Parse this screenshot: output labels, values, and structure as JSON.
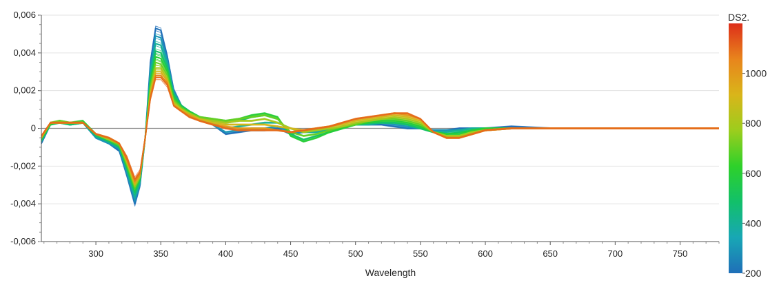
{
  "chart_data": {
    "type": "line",
    "xlabel": "Wavelength",
    "ylabel": "",
    "xlim": [
      258,
      780
    ],
    "ylim": [
      -0.006,
      0.006
    ],
    "x_ticks": [
      300,
      350,
      400,
      450,
      500,
      550,
      600,
      650,
      700,
      750
    ],
    "x_tick_labels": [
      "300",
      "350",
      "400",
      "450",
      "500",
      "550",
      "600",
      "650",
      "700",
      "750"
    ],
    "y_ticks": [
      -0.006,
      -0.004,
      -0.002,
      0,
      0.002,
      0.004,
      0.006
    ],
    "y_tick_labels": [
      "-0,006",
      "-0,004",
      "-0,002",
      "0",
      "0,002",
      "0,004",
      "0,006"
    ],
    "grid": true,
    "colorbar": {
      "title": "DS2.",
      "min": 200,
      "max": 1200,
      "ticks": [
        200,
        400,
        600,
        800,
        1000
      ],
      "tick_labels": [
        "200",
        "400",
        "600",
        "800",
        "1000"
      ],
      "colors": [
        "#1f6fb8",
        "#18a7b5",
        "#12c06a",
        "#2ed12a",
        "#9ccd1d",
        "#d9b51a",
        "#e8851c",
        "#dd2e1a"
      ]
    },
    "series_param": [
      200,
      300,
      400,
      500,
      600,
      700,
      800,
      900,
      1000,
      1100
    ],
    "series": [
      {
        "param": 200,
        "x": [
          258,
          265,
          272,
          280,
          290,
          300,
          310,
          318,
          324,
          330,
          334,
          338,
          342,
          346,
          350,
          355,
          360,
          366,
          372,
          380,
          390,
          400,
          410,
          420,
          430,
          440,
          450,
          460,
          470,
          480,
          490,
          500,
          510,
          520,
          530,
          540,
          550,
          560,
          570,
          580,
          590,
          600,
          620,
          650,
          700,
          750,
          780
        ],
        "y": [
          -0.0008,
          0.0002,
          0.0004,
          0.0002,
          0.0003,
          -0.0005,
          -0.0008,
          -0.0012,
          -0.0025,
          -0.004,
          -0.003,
          -0.0005,
          0.0035,
          0.0053,
          0.0052,
          0.0038,
          0.002,
          0.0012,
          0.0009,
          0.0005,
          0.0002,
          -0.0003,
          -0.0002,
          -0.0001,
          -0.0001,
          0.0,
          -0.0003,
          -0.0002,
          -0.0001,
          -0.0002,
          0.0001,
          0.0002,
          0.0002,
          0.0002,
          0.0001,
          0.0,
          0.0,
          -0.0001,
          -0.0001,
          0.0,
          0.0,
          0.0,
          0.0001,
          0.0,
          0.0,
          0.0,
          0.0
        ]
      },
      {
        "param": 300,
        "x": [
          258,
          265,
          272,
          280,
          290,
          300,
          310,
          318,
          324,
          330,
          334,
          338,
          342,
          346,
          350,
          355,
          360,
          366,
          372,
          380,
          390,
          400,
          410,
          420,
          430,
          440,
          450,
          460,
          470,
          480,
          490,
          500,
          510,
          520,
          530,
          540,
          550,
          560,
          570,
          580,
          590,
          600,
          620,
          650,
          700,
          750,
          780
        ],
        "y": [
          -0.0007,
          0.0002,
          0.0004,
          0.0002,
          0.0003,
          -0.0005,
          -0.0008,
          -0.0011,
          -0.0024,
          -0.0038,
          -0.0029,
          -0.0005,
          0.0032,
          0.0049,
          0.0048,
          0.0036,
          0.0019,
          0.0012,
          0.0009,
          0.0005,
          0.0002,
          -0.0002,
          -0.0001,
          0.0,
          0.0,
          0.0001,
          -0.0002,
          -0.0002,
          -0.0001,
          -0.0001,
          0.0001,
          0.0002,
          0.0002,
          0.0003,
          0.0002,
          0.0001,
          0.0,
          -0.0001,
          -0.0001,
          -0.0001,
          0.0,
          0.0,
          0.0,
          0.0,
          0.0,
          0.0,
          0.0
        ]
      },
      {
        "param": 400,
        "x": [
          258,
          265,
          272,
          280,
          290,
          300,
          310,
          318,
          324,
          330,
          334,
          338,
          342,
          346,
          350,
          355,
          360,
          366,
          372,
          380,
          390,
          400,
          410,
          420,
          430,
          440,
          450,
          460,
          470,
          480,
          490,
          500,
          510,
          520,
          530,
          540,
          550,
          560,
          570,
          580,
          590,
          600,
          620,
          650,
          700,
          750,
          780
        ],
        "y": [
          -0.0007,
          0.0002,
          0.0003,
          0.0002,
          0.0003,
          -0.0004,
          -0.0007,
          -0.001,
          -0.0022,
          -0.0036,
          -0.0028,
          -0.0005,
          0.0029,
          0.0045,
          0.0044,
          0.0034,
          0.0018,
          0.0012,
          0.0009,
          0.0006,
          0.0003,
          0.0,
          0.0001,
          0.0002,
          0.0003,
          0.0003,
          0.0,
          -0.0002,
          -0.0002,
          -0.0001,
          0.0001,
          0.0002,
          0.0002,
          0.0003,
          0.0003,
          0.0002,
          0.0,
          -0.0002,
          -0.0002,
          -0.0001,
          0.0,
          0.0,
          0.0,
          0.0,
          0.0,
          0.0,
          0.0
        ]
      },
      {
        "param": 500,
        "x": [
          258,
          265,
          272,
          280,
          290,
          300,
          310,
          318,
          324,
          330,
          334,
          338,
          342,
          346,
          350,
          355,
          360,
          366,
          372,
          380,
          390,
          400,
          410,
          420,
          430,
          440,
          450,
          460,
          470,
          480,
          490,
          500,
          510,
          520,
          530,
          540,
          550,
          560,
          570,
          580,
          590,
          600,
          620,
          650,
          700,
          750,
          780
        ],
        "y": [
          -0.0006,
          0.0002,
          0.0003,
          0.0002,
          0.0003,
          -0.0004,
          -0.0007,
          -0.001,
          -0.0021,
          -0.0034,
          -0.0027,
          -0.0005,
          0.0026,
          0.0041,
          0.004,
          0.0032,
          0.0017,
          0.0012,
          0.0009,
          0.0006,
          0.0004,
          0.0003,
          0.0004,
          0.0006,
          0.0007,
          0.0005,
          -0.0003,
          -0.0006,
          -0.0004,
          -0.0002,
          0.0,
          0.0002,
          0.0003,
          0.0003,
          0.0003,
          0.0002,
          0.0,
          -0.0002,
          -0.0003,
          -0.0002,
          -0.0001,
          0.0,
          0.0,
          0.0,
          0.0,
          0.0,
          0.0
        ]
      },
      {
        "param": 600,
        "x": [
          258,
          265,
          272,
          280,
          290,
          300,
          310,
          318,
          324,
          330,
          334,
          338,
          342,
          346,
          350,
          355,
          360,
          366,
          372,
          380,
          390,
          400,
          410,
          420,
          430,
          440,
          450,
          460,
          470,
          480,
          490,
          500,
          510,
          520,
          530,
          540,
          550,
          560,
          570,
          580,
          590,
          600,
          620,
          650,
          700,
          750,
          780
        ],
        "y": [
          -0.0006,
          0.0002,
          0.0004,
          0.0003,
          0.0004,
          -0.0003,
          -0.0006,
          -0.0009,
          -0.002,
          -0.0032,
          -0.0026,
          -0.0005,
          0.0024,
          0.0038,
          0.0037,
          0.003,
          0.0016,
          0.0011,
          0.0009,
          0.0006,
          0.0005,
          0.0004,
          0.0005,
          0.0007,
          0.0008,
          0.0006,
          -0.0004,
          -0.0007,
          -0.0005,
          -0.0002,
          0.0,
          0.0002,
          0.0003,
          0.0004,
          0.0004,
          0.0003,
          0.0001,
          -0.0002,
          -0.0003,
          -0.0003,
          -0.0001,
          0.0,
          0.0,
          0.0,
          0.0,
          0.0,
          0.0
        ]
      },
      {
        "param": 700,
        "x": [
          258,
          265,
          272,
          280,
          290,
          300,
          310,
          318,
          324,
          330,
          334,
          338,
          342,
          346,
          350,
          355,
          360,
          366,
          372,
          380,
          390,
          400,
          410,
          420,
          430,
          440,
          450,
          460,
          470,
          480,
          490,
          500,
          510,
          520,
          530,
          540,
          550,
          560,
          570,
          580,
          590,
          600,
          620,
          650,
          700,
          750,
          780
        ],
        "y": [
          -0.0005,
          0.0003,
          0.0004,
          0.0003,
          0.0003,
          -0.0003,
          -0.0006,
          -0.0009,
          -0.0019,
          -0.0031,
          -0.0025,
          -0.0005,
          0.0022,
          0.0035,
          0.0034,
          0.0028,
          0.0015,
          0.0011,
          0.0008,
          0.0006,
          0.0005,
          0.0004,
          0.0005,
          0.0006,
          0.0007,
          0.0005,
          -0.0002,
          -0.0004,
          -0.0003,
          -0.0001,
          0.0001,
          0.0002,
          0.0004,
          0.0005,
          0.0005,
          0.0004,
          0.0002,
          -0.0002,
          -0.0004,
          -0.0004,
          -0.0002,
          -0.0001,
          0.0,
          0.0,
          0.0,
          0.0,
          0.0
        ]
      },
      {
        "param": 800,
        "x": [
          258,
          265,
          272,
          280,
          290,
          300,
          310,
          318,
          324,
          330,
          334,
          338,
          342,
          346,
          350,
          355,
          360,
          366,
          372,
          380,
          390,
          400,
          410,
          420,
          430,
          440,
          450,
          460,
          470,
          480,
          490,
          500,
          510,
          520,
          530,
          540,
          550,
          560,
          570,
          580,
          590,
          600,
          620,
          650,
          700,
          750,
          780
        ],
        "y": [
          -0.0005,
          0.0003,
          0.0003,
          0.0003,
          0.0003,
          -0.0003,
          -0.0006,
          -0.0008,
          -0.0018,
          -0.003,
          -0.0025,
          -0.0005,
          0.002,
          0.0032,
          0.0032,
          0.0026,
          0.0014,
          0.001,
          0.0008,
          0.0005,
          0.0004,
          0.0003,
          0.0004,
          0.0004,
          0.0005,
          0.0003,
          0.0,
          -0.0002,
          -0.0001,
          0.0,
          0.0001,
          0.0003,
          0.0004,
          0.0005,
          0.0006,
          0.0005,
          0.0003,
          -0.0002,
          -0.0004,
          -0.0004,
          -0.0002,
          -0.0001,
          0.0,
          0.0,
          0.0,
          0.0,
          0.0
        ]
      },
      {
        "param": 900,
        "x": [
          258,
          265,
          272,
          280,
          290,
          300,
          310,
          318,
          324,
          330,
          334,
          338,
          342,
          346,
          350,
          355,
          360,
          366,
          372,
          380,
          390,
          400,
          410,
          420,
          430,
          440,
          450,
          460,
          470,
          480,
          490,
          500,
          510,
          520,
          530,
          540,
          550,
          560,
          570,
          580,
          590,
          600,
          620,
          650,
          700,
          750,
          780
        ],
        "y": [
          -0.0005,
          0.0003,
          0.0003,
          0.0003,
          0.0003,
          -0.0003,
          -0.0005,
          -0.0008,
          -0.0017,
          -0.0029,
          -0.0024,
          -0.0005,
          0.0018,
          0.003,
          0.003,
          0.0025,
          0.0013,
          0.001,
          0.0007,
          0.0005,
          0.0003,
          0.0002,
          0.0002,
          0.0002,
          0.0002,
          0.0001,
          0.0,
          -0.0001,
          0.0,
          0.0001,
          0.0002,
          0.0004,
          0.0005,
          0.0006,
          0.0007,
          0.0006,
          0.0004,
          -0.0002,
          -0.0005,
          -0.0005,
          -0.0003,
          -0.0001,
          0.0,
          0.0,
          0.0,
          0.0,
          0.0
        ]
      },
      {
        "param": 1000,
        "x": [
          258,
          265,
          272,
          280,
          290,
          300,
          310,
          318,
          324,
          330,
          334,
          338,
          342,
          346,
          350,
          355,
          360,
          366,
          372,
          380,
          390,
          400,
          410,
          420,
          430,
          440,
          450,
          460,
          470,
          480,
          490,
          500,
          510,
          520,
          530,
          540,
          550,
          560,
          570,
          580,
          590,
          600,
          620,
          650,
          700,
          750,
          780
        ],
        "y": [
          -0.0005,
          0.0003,
          0.0003,
          0.0003,
          0.0003,
          -0.0003,
          -0.0005,
          -0.0008,
          -0.0016,
          -0.0028,
          -0.0024,
          -0.0005,
          0.0017,
          0.0028,
          0.0028,
          0.0024,
          0.0012,
          0.0009,
          0.0007,
          0.0004,
          0.0002,
          0.0001,
          0.0,
          0.0,
          0.0,
          -0.0001,
          -0.0002,
          -0.0001,
          0.0,
          0.0001,
          0.0003,
          0.0005,
          0.0006,
          0.0007,
          0.0008,
          0.0007,
          0.0005,
          -0.0002,
          -0.0005,
          -0.0005,
          -0.0003,
          -0.0001,
          0.0,
          0.0,
          0.0,
          0.0,
          0.0
        ]
      },
      {
        "param": 1100,
        "x": [
          258,
          265,
          272,
          280,
          290,
          300,
          310,
          318,
          324,
          330,
          334,
          338,
          342,
          346,
          350,
          355,
          360,
          366,
          372,
          380,
          390,
          400,
          410,
          420,
          430,
          440,
          450,
          460,
          470,
          480,
          490,
          500,
          510,
          520,
          530,
          540,
          550,
          560,
          570,
          580,
          590,
          600,
          620,
          650,
          700,
          750,
          780
        ],
        "y": [
          -0.0004,
          0.0003,
          0.0003,
          0.0003,
          0.0003,
          -0.0003,
          -0.0005,
          -0.0008,
          -0.0016,
          -0.0027,
          -0.0023,
          -0.0005,
          0.0016,
          0.0027,
          0.0027,
          0.0023,
          0.0012,
          0.0009,
          0.0006,
          0.0004,
          0.0002,
          0.0,
          -0.0001,
          -0.0001,
          -0.0001,
          -0.0001,
          -0.0002,
          -0.0001,
          0.0,
          0.0001,
          0.0003,
          0.0005,
          0.0006,
          0.0007,
          0.0008,
          0.0008,
          0.0005,
          -0.0002,
          -0.0005,
          -0.0005,
          -0.0003,
          -0.0001,
          0.0,
          0.0,
          0.0,
          0.0,
          0.0
        ]
      }
    ]
  }
}
